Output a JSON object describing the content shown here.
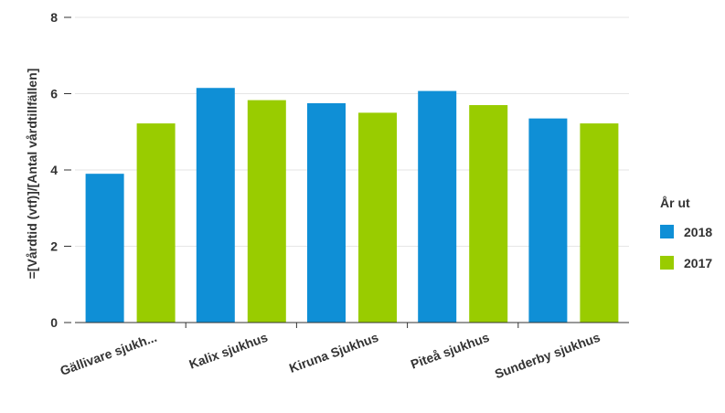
{
  "chart_data": {
    "type": "bar",
    "ylabel": "=[Vårdtid (vtf)]/[Antal vårdtillfällen]",
    "xlabel": "",
    "categories": [
      "Gällivare sjukh...",
      "Kalix sjukhus",
      "Kiruna Sjukhus",
      "Piteå sjukhus",
      "Sunderby sjukhus"
    ],
    "series": [
      {
        "name": "2018",
        "color": "#0f8fd6",
        "values": [
          3.9,
          6.15,
          5.75,
          6.07,
          5.35
        ]
      },
      {
        "name": "2017",
        "color": "#99cc00",
        "values": [
          5.22,
          5.83,
          5.5,
          5.7,
          5.22
        ]
      }
    ],
    "ylim": [
      0,
      8
    ],
    "yticks": [
      "0",
      "2",
      "4",
      "6",
      "8"
    ],
    "grid": true,
    "legend": {
      "title": "År ut",
      "position": "right"
    }
  }
}
